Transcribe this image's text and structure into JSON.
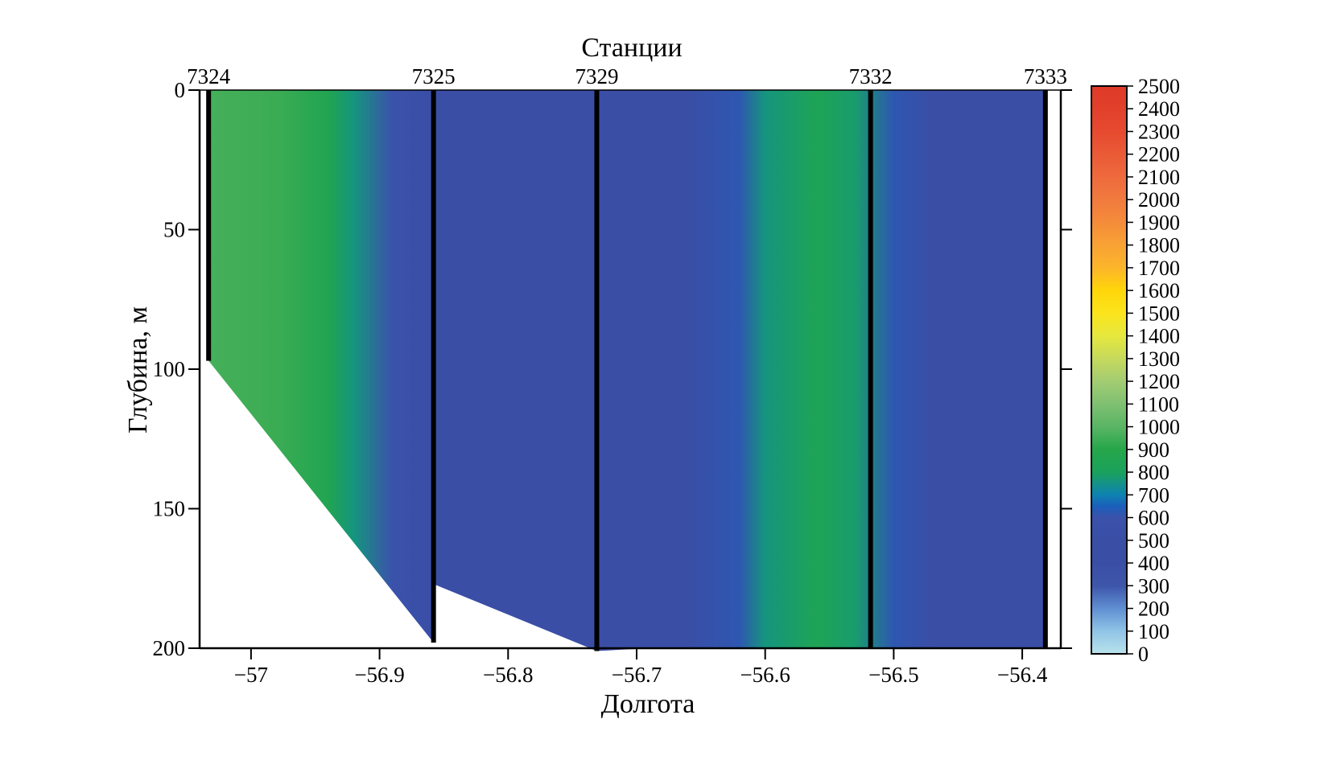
{
  "chart_data": {
    "type": "heatmap",
    "title": "",
    "top_axis_label": "Станции",
    "xlabel": "Долгота",
    "ylabel": "Глубина, м",
    "xlim": [
      -57.04,
      -56.37
    ],
    "ylim": [
      0,
      200
    ],
    "y_inverted": true,
    "x_ticks": [
      -57,
      -56.9,
      -56.8,
      -56.7,
      -56.6,
      -56.5,
      -56.4
    ],
    "x_tick_labels": [
      "−57",
      "−56.9",
      "−56.8",
      "−56.7",
      "−56.6",
      "−56.5",
      "−56.4"
    ],
    "y_ticks": [
      0,
      50,
      100,
      150,
      200
    ],
    "y_tick_labels": [
      "0",
      "50",
      "100",
      "150",
      "200"
    ],
    "stations": [
      {
        "name": "7324",
        "x": -57.033,
        "max_depth": 97
      },
      {
        "name": "7325",
        "x": -56.858,
        "max_depth": 198
      },
      {
        "name": "7329",
        "x": -56.731,
        "max_depth": 201
      },
      {
        "name": "7332",
        "x": -56.518,
        "max_depth": 200
      },
      {
        "name": "7333",
        "x": -56.382,
        "max_depth": 200
      }
    ],
    "bottom_profile": [
      [
        -57.033,
        97
      ],
      [
        -56.858,
        198
      ],
      [
        -56.858,
        177
      ],
      [
        -56.731,
        201
      ],
      [
        -56.69,
        200
      ],
      [
        -56.382,
        200
      ]
    ],
    "colorbar": {
      "min": 0,
      "max": 2500,
      "ticks": [
        0,
        100,
        200,
        300,
        400,
        500,
        600,
        700,
        800,
        900,
        1000,
        1100,
        1200,
        1300,
        1400,
        1500,
        1600,
        1700,
        1800,
        1900,
        2000,
        2100,
        2200,
        2300,
        2400,
        2500
      ],
      "tick_labels": [
        "0",
        "100",
        "200",
        "300",
        "400",
        "500",
        "600",
        "700",
        "800",
        "900",
        "1000",
        "1100",
        "1200",
        "1300",
        "1400",
        "1500",
        "1600",
        "1700",
        "1800",
        "1900",
        "2000",
        "2100",
        "2200",
        "2300",
        "2400",
        "2500"
      ],
      "stops": [
        {
          "v": 0,
          "color": "#b9e3ec"
        },
        {
          "v": 100,
          "color": "#90c4e6"
        },
        {
          "v": 200,
          "color": "#5f8fd2"
        },
        {
          "v": 300,
          "color": "#3e56aa"
        },
        {
          "v": 400,
          "color": "#3a4ea6"
        },
        {
          "v": 500,
          "color": "#3a4ea6"
        },
        {
          "v": 600,
          "color": "#3b52ab"
        },
        {
          "v": 650,
          "color": "#1a5fba"
        },
        {
          "v": 700,
          "color": "#0e82b2"
        },
        {
          "v": 800,
          "color": "#1aa25c"
        },
        {
          "v": 900,
          "color": "#26a64a"
        },
        {
          "v": 1000,
          "color": "#5ab564"
        },
        {
          "v": 1100,
          "color": "#7fc072"
        },
        {
          "v": 1200,
          "color": "#a3cc72"
        },
        {
          "v": 1300,
          "color": "#c6d95c"
        },
        {
          "v": 1400,
          "color": "#e6e83e"
        },
        {
          "v": 1500,
          "color": "#fbe41d"
        },
        {
          "v": 1600,
          "color": "#ffd60a"
        },
        {
          "v": 1700,
          "color": "#fcb52a"
        },
        {
          "v": 1800,
          "color": "#f8a234"
        },
        {
          "v": 1900,
          "color": "#f48c3a"
        },
        {
          "v": 2000,
          "color": "#f17a3e"
        },
        {
          "v": 2100,
          "color": "#ee6a3d"
        },
        {
          "v": 2200,
          "color": "#ea5a36"
        },
        {
          "v": 2300,
          "color": "#e64a30"
        },
        {
          "v": 2400,
          "color": "#e2402b"
        },
        {
          "v": 2500,
          "color": "#de3a28"
        }
      ]
    },
    "field_profile": [
      {
        "x": -57.03,
        "value": 960
      },
      {
        "x": -56.98,
        "value": 940
      },
      {
        "x": -56.94,
        "value": 860
      },
      {
        "x": -56.92,
        "value": 760
      },
      {
        "x": -56.89,
        "value": 600
      },
      {
        "x": -56.86,
        "value": 480
      },
      {
        "x": -56.73,
        "value": 480
      },
      {
        "x": -56.66,
        "value": 500
      },
      {
        "x": -56.62,
        "value": 620
      },
      {
        "x": -56.6,
        "value": 760
      },
      {
        "x": -56.56,
        "value": 840
      },
      {
        "x": -56.53,
        "value": 780
      },
      {
        "x": -56.5,
        "value": 620
      },
      {
        "x": -56.47,
        "value": 500
      },
      {
        "x": -56.38,
        "value": 480
      }
    ]
  }
}
